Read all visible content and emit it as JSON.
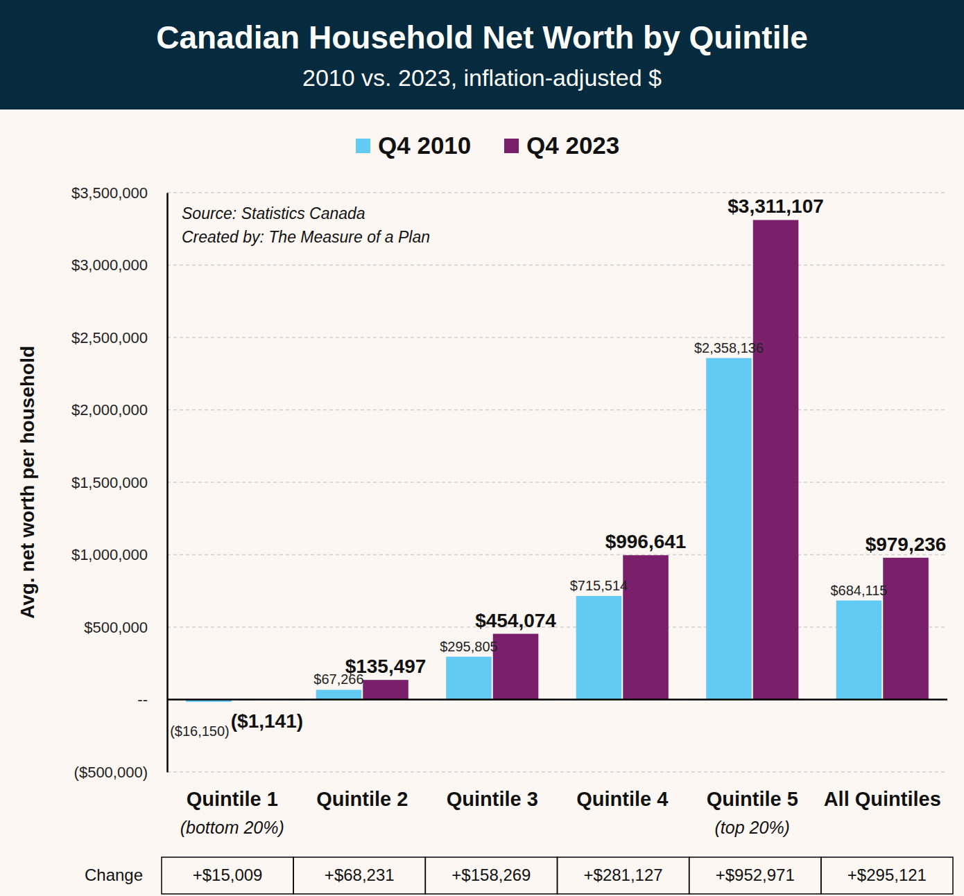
{
  "chart_data": {
    "type": "bar",
    "title": "Canadian Household Net Worth by Quintile",
    "subtitle": "2010 vs. 2023, inflation-adjusted $",
    "y_label": "Avg. net worth per household",
    "annotations": [
      "Source: Statistics Canada",
      "Created by: The Measure of a Plan"
    ],
    "categories": [
      "Quintile 1",
      "Quintile 2",
      "Quintile 3",
      "Quintile 4",
      "Quintile 5",
      "All Quintiles"
    ],
    "category_notes": [
      "(bottom 20%)",
      null,
      null,
      null,
      "(top 20%)",
      null
    ],
    "series": [
      {
        "name": "Q4 2010",
        "color": "#63cbf3",
        "values": [
          -16150,
          67266,
          295805,
          715514,
          2358136,
          684115
        ],
        "value_labels": [
          "($16,150)",
          "$67,266",
          "$295,805",
          "$715,514",
          "$2,358,136",
          "$684,115"
        ]
      },
      {
        "name": "Q4 2023",
        "color": "#7a1f6a",
        "values": [
          -1141,
          135497,
          454074,
          996641,
          3311107,
          979236
        ],
        "value_labels": [
          "($1,141)",
          "$135,497",
          "$454,074",
          "$996,641",
          "$3,311,107",
          "$979,236"
        ]
      }
    ],
    "change_table": {
      "label": "Change",
      "values": [
        15009,
        68231,
        158269,
        281127,
        952971,
        295121
      ],
      "value_labels": [
        "+$15,009",
        "+$68,231",
        "+$158,269",
        "+$281,127",
        "+$952,971",
        "+$295,121"
      ]
    },
    "ylim": [
      -500000,
      3500000
    ],
    "yticks": [
      {
        "value": -500000,
        "label": "($500,000)"
      },
      {
        "value": 0,
        "label": "--"
      },
      {
        "value": 500000,
        "label": "$500,000"
      },
      {
        "value": 1000000,
        "label": "$1,000,000"
      },
      {
        "value": 1500000,
        "label": "$1,500,000"
      },
      {
        "value": 2000000,
        "label": "$2,000,000"
      },
      {
        "value": 2500000,
        "label": "$2,500,000"
      },
      {
        "value": 3000000,
        "label": "$3,000,000"
      },
      {
        "value": 3500000,
        "label": "$3,500,000"
      }
    ],
    "grid": true,
    "legend": "top",
    "data_labels": true
  }
}
